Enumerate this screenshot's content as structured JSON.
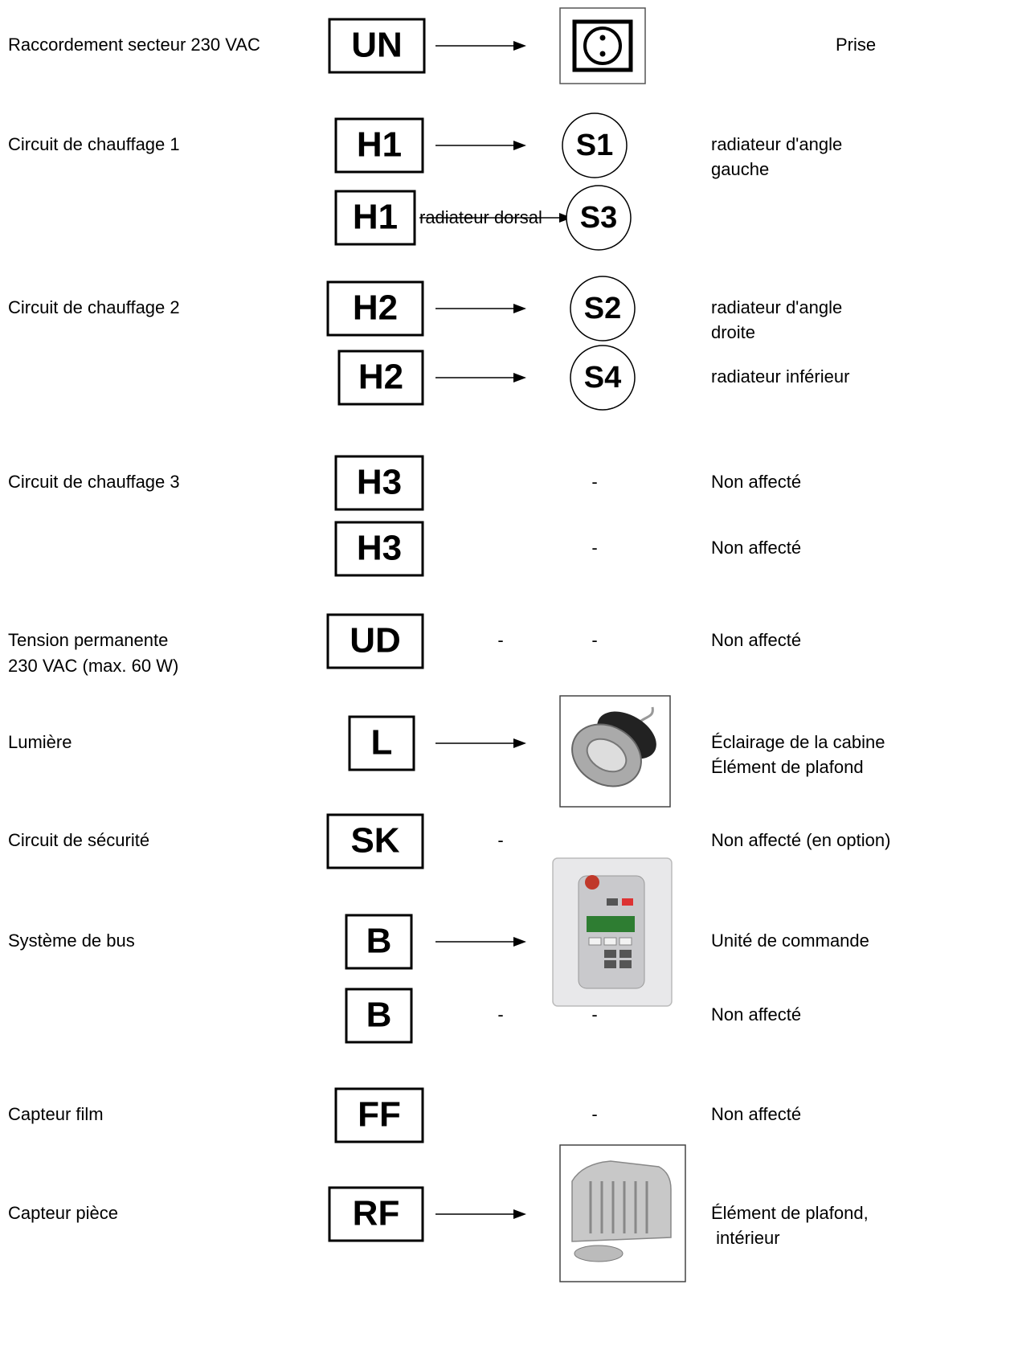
{
  "rows": [
    {
      "label": [
        "Raccordement secteur 230 VAC"
      ],
      "code": "UN",
      "description": [
        "Prise"
      ]
    },
    {
      "label": [
        "Circuit de chauffage 1"
      ],
      "code": "H1",
      "target": "S1",
      "description": [
        "radiateur d'angle",
        "gauche"
      ]
    },
    {
      "code": "H1",
      "arrow_text": "radiateur dorsal",
      "target": "S3"
    },
    {
      "label": [
        "Circuit de chauffage 2"
      ],
      "code": "H2",
      "target": "S2",
      "description": [
        "radiateur d'angle",
        "droite"
      ]
    },
    {
      "code": "H2",
      "target": "S4",
      "description": [
        "radiateur inférieur"
      ]
    },
    {
      "label": [
        "Circuit de chauffage 3"
      ],
      "code": "H3",
      "dashes": [
        "-"
      ],
      "description": [
        "Non affecté"
      ]
    },
    {
      "code": "H3",
      "dashes": [
        "-"
      ],
      "description": [
        "Non affecté"
      ]
    },
    {
      "label": [
        "Tension permanente",
        "230 VAC (max. 60 W)"
      ],
      "code": "UD",
      "dashes": [
        "-",
        "-"
      ],
      "description": [
        "Non affecté"
      ]
    },
    {
      "label": [
        "Lumière"
      ],
      "code": "L",
      "description": [
        "Éclairage de la cabine",
        "Élément de plafond"
      ]
    },
    {
      "label": [
        "Circuit de sécurité"
      ],
      "code": "SK",
      "dashes": [
        "-"
      ],
      "description": [
        "Non affecté (en option)"
      ]
    },
    {
      "label": [
        "Système de bus"
      ],
      "code": "B",
      "description": [
        "Unité de commande"
      ]
    },
    {
      "code": "B",
      "dashes": [
        "-",
        "-"
      ],
      "description": [
        "Non affecté"
      ]
    },
    {
      "label": [
        "Capteur film"
      ],
      "code": "FF",
      "dashes": [
        "-"
      ],
      "description": [
        "Non affecté"
      ]
    },
    {
      "label": [
        "Capteur pièce"
      ],
      "code": "RF",
      "description": [
        "Élément de plafond,",
        " intérieur"
      ]
    }
  ]
}
